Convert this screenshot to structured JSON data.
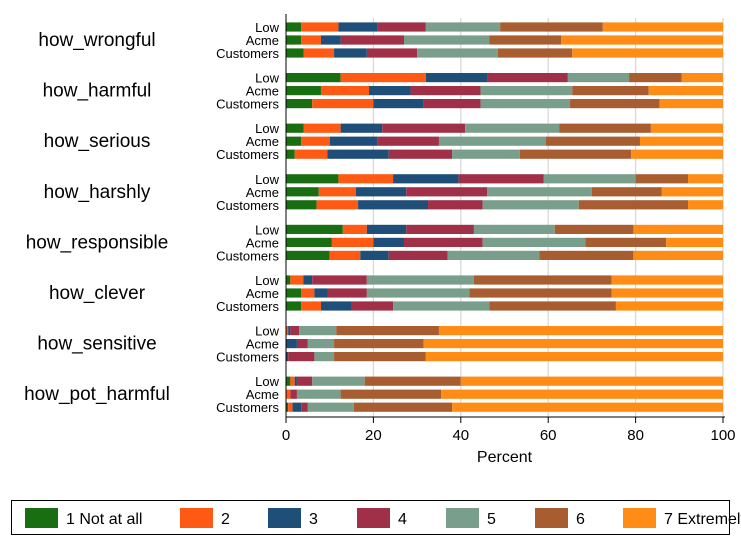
{
  "chart_data": {
    "type": "bar",
    "orientation": "horizontal",
    "stacked": true,
    "xlabel": "Percent",
    "xlim": [
      0,
      100
    ],
    "xticks": [
      0,
      20,
      40,
      60,
      80,
      100
    ],
    "grid": true,
    "legend_position": "bottom",
    "row_labels": [
      "Low",
      "Acme",
      "Customers"
    ],
    "categories": [
      "1 Not at all",
      "2",
      "3",
      "4",
      "5",
      "6",
      "7 Extremely"
    ],
    "colors": [
      "#1a6e12",
      "#ff5a14",
      "#1f4e79",
      "#a03048",
      "#7a9e8c",
      "#a85d30",
      "#ff8c14"
    ],
    "groups": [
      {
        "name": "how_wrongful",
        "rows": [
          {
            "label": "Low",
            "values": [
              3.5,
              8.5,
              9,
              11,
              17,
              23.5,
              27.5
            ]
          },
          {
            "label": "Acme",
            "values": [
              3.5,
              4.5,
              4.5,
              14.5,
              19.5,
              16.5,
              37
            ]
          },
          {
            "label": "Customers",
            "values": [
              4,
              7,
              7.5,
              11.5,
              18.5,
              17,
              34.5
            ]
          }
        ]
      },
      {
        "name": "how_harmful",
        "rows": [
          {
            "label": "Low",
            "values": [
              12.5,
              19.5,
              14,
              18.5,
              14,
              12,
              9.5
            ]
          },
          {
            "label": "Acme",
            "values": [
              8,
              11,
              9.5,
              16,
              21,
              17.5,
              17
            ]
          },
          {
            "label": "Customers",
            "values": [
              6,
              14,
              11.5,
              13,
              20.5,
              20.5,
              14.5
            ]
          }
        ]
      },
      {
        "name": "how_serious",
        "rows": [
          {
            "label": "Low",
            "values": [
              4,
              8.5,
              9.5,
              19,
              21.5,
              21,
              16.5
            ]
          },
          {
            "label": "Acme",
            "values": [
              3.5,
              6.5,
              11,
              14,
              24.5,
              21.5,
              19
            ]
          },
          {
            "label": "Customers",
            "values": [
              2,
              7.5,
              14,
              14.5,
              15.5,
              25.5,
              21
            ]
          }
        ]
      },
      {
        "name": "how_harshly",
        "rows": [
          {
            "label": "Low",
            "values": [
              12,
              12.5,
              15,
              19.5,
              21,
              12,
              8
            ]
          },
          {
            "label": "Acme",
            "values": [
              7.5,
              8.5,
              11.5,
              18.5,
              24,
              16,
              14
            ]
          },
          {
            "label": "Customers",
            "values": [
              7,
              9.5,
              16,
              12.5,
              22,
              25,
              8
            ]
          }
        ]
      },
      {
        "name": "how_responsible",
        "rows": [
          {
            "label": "Low",
            "values": [
              13,
              5.5,
              9,
              15.5,
              18.5,
              18,
              20.5
            ]
          },
          {
            "label": "Acme",
            "values": [
              10.5,
              9.5,
              7,
              18,
              23.5,
              18.5,
              13
            ]
          },
          {
            "label": "Customers",
            "values": [
              10,
              7,
              6.5,
              13.5,
              21,
              21.5,
              20.5
            ]
          }
        ]
      },
      {
        "name": "how_clever",
        "rows": [
          {
            "label": "Low",
            "values": [
              1,
              3,
              2,
              12.5,
              24.5,
              31.5,
              25.5
            ]
          },
          {
            "label": "Acme",
            "values": [
              3.5,
              3,
              3,
              9,
              23.5,
              32.5,
              25.5
            ]
          },
          {
            "label": "Customers",
            "values": [
              3.5,
              4.5,
              7,
              9.5,
              22,
              29,
              24.5
            ]
          }
        ]
      },
      {
        "name": "how_sensitive",
        "rows": [
          {
            "label": "Low",
            "values": [
              0,
              0.5,
              0.5,
              2,
              8.5,
              23.5,
              65
            ]
          },
          {
            "label": "Acme",
            "values": [
              0,
              0,
              2.5,
              2.5,
              6,
              20.5,
              68.5
            ]
          },
          {
            "label": "Customers",
            "values": [
              0,
              0,
              0.5,
              6,
              4.5,
              21,
              68
            ]
          }
        ]
      },
      {
        "name": "how_pot_harmful",
        "rows": [
          {
            "label": "Low",
            "values": [
              1,
              1,
              0.5,
              3.5,
              12,
              22,
              60
            ]
          },
          {
            "label": "Acme",
            "values": [
              0,
              1,
              0,
              1.5,
              10,
              23,
              64.5
            ]
          },
          {
            "label": "Customers",
            "values": [
              0.5,
              1,
              2,
              1.5,
              10.5,
              22.5,
              62
            ]
          }
        ]
      }
    ]
  }
}
